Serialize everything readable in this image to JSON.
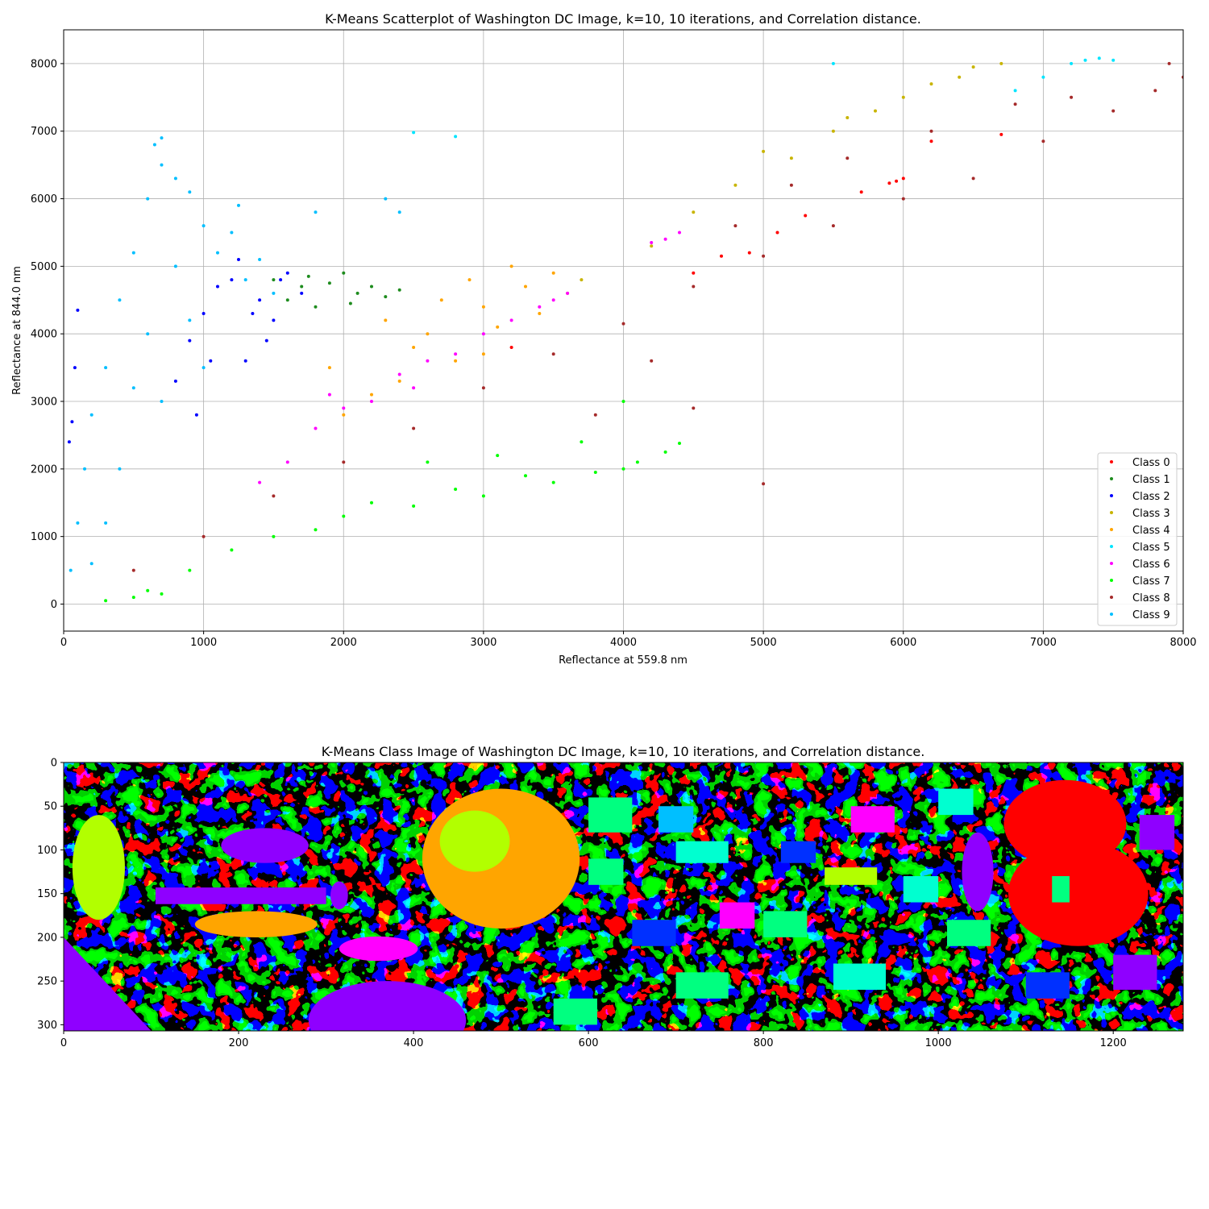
{
  "chart_data": [
    {
      "type": "scatter",
      "title": "K-Means Scatterplot of Washington DC Image, k=10, 10 iterations, and Correlation distance.",
      "xlabel": "Reflectance at 559.8 nm",
      "ylabel": "Reflectance at 844.0 nm",
      "xlim": [
        0,
        8000
      ],
      "ylim": [
        -400,
        8500
      ],
      "xticks": [
        0,
        1000,
        2000,
        3000,
        4000,
        5000,
        6000,
        7000,
        8000
      ],
      "yticks": [
        0,
        1000,
        2000,
        3000,
        4000,
        5000,
        6000,
        7000,
        8000
      ],
      "grid": true,
      "legend_position": "lower right",
      "series": [
        {
          "name": "Class 0",
          "color": "#ff0000",
          "points": [
            [
              4700,
              5150
            ],
            [
              5900,
              6230
            ],
            [
              5950,
              6260
            ],
            [
              6000,
              6300
            ],
            [
              4900,
              5200
            ],
            [
              6200,
              6850
            ],
            [
              5300,
              5750
            ],
            [
              4500,
              4900
            ],
            [
              5700,
              6100
            ],
            [
              6700,
              6950
            ],
            [
              3200,
              3800
            ],
            [
              5100,
              5500
            ]
          ]
        },
        {
          "name": "Class 1",
          "color": "#1e8c1e",
          "points": [
            [
              1700,
              4700
            ],
            [
              1900,
              4750
            ],
            [
              2100,
              4600
            ],
            [
              2300,
              4550
            ],
            [
              1500,
              4800
            ],
            [
              1800,
              4400
            ],
            [
              2000,
              4900
            ],
            [
              2200,
              4700
            ],
            [
              1600,
              4500
            ],
            [
              2400,
              4650
            ],
            [
              1750,
              4850
            ],
            [
              2050,
              4450
            ]
          ]
        },
        {
          "name": "Class 2",
          "color": "#0000ff",
          "points": [
            [
              1200,
              4800
            ],
            [
              1400,
              4500
            ],
            [
              1000,
              4300
            ],
            [
              1600,
              4900
            ],
            [
              900,
              3900
            ],
            [
              1300,
              3600
            ],
            [
              1100,
              4700
            ],
            [
              1500,
              4200
            ],
            [
              800,
              3300
            ],
            [
              1700,
              4600
            ],
            [
              1250,
              5100
            ],
            [
              1450,
              3900
            ],
            [
              950,
              2800
            ],
            [
              1350,
              4300
            ],
            [
              1050,
              3600
            ],
            [
              1550,
              4800
            ],
            [
              100,
              4350
            ],
            [
              80,
              3500
            ],
            [
              60,
              2700
            ],
            [
              40,
              2400
            ]
          ]
        },
        {
          "name": "Class 3",
          "color": "#c8b400",
          "points": [
            [
              5000,
              6700
            ],
            [
              5500,
              7000
            ],
            [
              6000,
              7500
            ],
            [
              6500,
              7950
            ],
            [
              6700,
              8000
            ],
            [
              4800,
              6200
            ],
            [
              4500,
              5800
            ],
            [
              5200,
              6600
            ],
            [
              5800,
              7300
            ],
            [
              6200,
              7700
            ],
            [
              5600,
              7200
            ],
            [
              6400,
              7800
            ],
            [
              4200,
              5300
            ],
            [
              3700,
              4800
            ]
          ]
        },
        {
          "name": "Class 4",
          "color": "#ffa500",
          "points": [
            [
              2600,
              4000
            ],
            [
              3000,
              4400
            ],
            [
              3300,
              4700
            ],
            [
              2800,
              3600
            ],
            [
              2400,
              3300
            ],
            [
              3500,
              4900
            ],
            [
              2200,
              3100
            ],
            [
              3100,
              4100
            ],
            [
              2700,
              4500
            ],
            [
              3400,
              4300
            ],
            [
              2500,
              3800
            ],
            [
              2900,
              4800
            ],
            [
              3200,
              5000
            ],
            [
              2000,
              2800
            ],
            [
              3600,
              4600
            ],
            [
              2300,
              4200
            ],
            [
              1900,
              3500
            ],
            [
              3000,
              3700
            ]
          ]
        },
        {
          "name": "Class 5",
          "color": "#00e5ff",
          "points": [
            [
              7300,
              8050
            ],
            [
              7400,
              8080
            ],
            [
              7200,
              8000
            ],
            [
              7500,
              8050
            ],
            [
              7000,
              7800
            ],
            [
              6800,
              7600
            ],
            [
              5500,
              8000
            ],
            [
              2500,
              6980
            ],
            [
              2800,
              6920
            ]
          ]
        },
        {
          "name": "Class 6",
          "color": "#ff00ff",
          "points": [
            [
              1800,
              2600
            ],
            [
              2200,
              3000
            ],
            [
              2600,
              3600
            ],
            [
              3000,
              4000
            ],
            [
              3400,
              4400
            ],
            [
              3600,
              4600
            ],
            [
              2000,
              2900
            ],
            [
              2400,
              3400
            ],
            [
              2800,
              3700
            ],
            [
              3200,
              4200
            ],
            [
              1600,
              2100
            ],
            [
              1400,
              1800
            ],
            [
              1900,
              3100
            ],
            [
              2500,
              3200
            ],
            [
              3500,
              4500
            ],
            [
              4300,
              5400
            ],
            [
              4400,
              5500
            ],
            [
              4200,
              5350
            ]
          ]
        },
        {
          "name": "Class 7",
          "color": "#00ff00",
          "points": [
            [
              2000,
              1300
            ],
            [
              2500,
              1450
            ],
            [
              3000,
              1600
            ],
            [
              3500,
              1800
            ],
            [
              4000,
              2000
            ],
            [
              4300,
              2250
            ],
            [
              2200,
              1500
            ],
            [
              2800,
              1700
            ],
            [
              3300,
              1900
            ],
            [
              1500,
              1000
            ],
            [
              1200,
              800
            ],
            [
              900,
              500
            ],
            [
              600,
              200
            ],
            [
              300,
              50
            ],
            [
              500,
              100
            ],
            [
              700,
              150
            ],
            [
              3800,
              1950
            ],
            [
              4100,
              2100
            ],
            [
              2600,
              2100
            ],
            [
              3100,
              2200
            ],
            [
              4400,
              2380
            ],
            [
              4000,
              3000
            ],
            [
              3700,
              2400
            ],
            [
              1800,
              1100
            ]
          ]
        },
        {
          "name": "Class 8",
          "color": "#a52a2a",
          "points": [
            [
              500,
              500
            ],
            [
              1000,
              1000
            ],
            [
              1500,
              1600
            ],
            [
              2000,
              2100
            ],
            [
              2500,
              2600
            ],
            [
              3000,
              3200
            ],
            [
              3500,
              3700
            ],
            [
              4000,
              4150
            ],
            [
              4500,
              4700
            ],
            [
              5000,
              5150
            ],
            [
              5500,
              5600
            ],
            [
              6000,
              6000
            ],
            [
              6500,
              6300
            ],
            [
              7000,
              6850
            ],
            [
              7500,
              7300
            ],
            [
              7800,
              7600
            ],
            [
              7900,
              8000
            ],
            [
              8000,
              7800
            ],
            [
              4800,
              5600
            ],
            [
              5200,
              6200
            ],
            [
              5600,
              6600
            ],
            [
              6200,
              7000
            ],
            [
              6800,
              7400
            ],
            [
              7200,
              7500
            ],
            [
              4200,
              3600
            ],
            [
              3800,
              2800
            ],
            [
              4500,
              2900
            ],
            [
              5000,
              1780
            ]
          ]
        },
        {
          "name": "Class 9",
          "color": "#00bfff",
          "points": [
            [
              50,
              500
            ],
            [
              100,
              1200
            ],
            [
              150,
              2000
            ],
            [
              200,
              2800
            ],
            [
              300,
              3500
            ],
            [
              400,
              4500
            ],
            [
              500,
              5200
            ],
            [
              600,
              6000
            ],
            [
              700,
              6500
            ],
            [
              800,
              6300
            ],
            [
              900,
              6100
            ],
            [
              1000,
              5600
            ],
            [
              1100,
              5200
            ],
            [
              1200,
              5500
            ],
            [
              1300,
              4800
            ],
            [
              1400,
              5100
            ],
            [
              1500,
              4600
            ],
            [
              600,
              4000
            ],
            [
              700,
              3000
            ],
            [
              400,
              2000
            ],
            [
              300,
              1200
            ],
            [
              200,
              600
            ],
            [
              800,
              5000
            ],
            [
              900,
              4200
            ],
            [
              1000,
              3500
            ],
            [
              500,
              3200
            ],
            [
              650,
              6800
            ],
            [
              700,
              6900
            ],
            [
              1250,
              5900
            ],
            [
              2300,
              6000
            ],
            [
              2400,
              5800
            ],
            [
              1800,
              5800
            ]
          ]
        }
      ]
    },
    {
      "type": "heatmap",
      "title": "K-Means Class Image of Washington DC Image, k=10, 10 iterations, and Correlation distance.",
      "xlim": [
        0,
        1280
      ],
      "ylim": [
        307,
        0
      ],
      "xticks": [
        0,
        200,
        400,
        600,
        800,
        1000,
        1200
      ],
      "yticks": [
        0,
        50,
        100,
        150,
        200,
        250,
        300
      ],
      "palette": [
        "#ff0000",
        "#ffa500",
        "#b2ff00",
        "#00ff80",
        "#00ffd0",
        "#0030ff",
        "#8f00ff",
        "#ff00ff",
        "#00bfff"
      ]
    }
  ]
}
